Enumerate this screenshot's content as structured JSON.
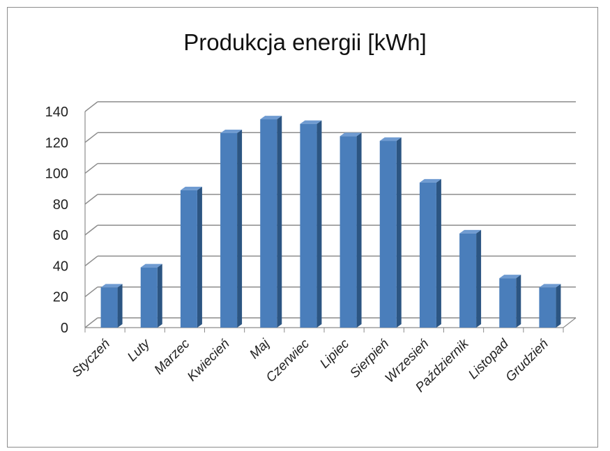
{
  "chart_data": {
    "type": "bar",
    "title": "Produkcja energii [kWh]",
    "xlabel": "",
    "ylabel": "",
    "categories": [
      "Styczeń",
      "Luty",
      "Marzec",
      "Kwiecień",
      "Maj",
      "Czerwiec",
      "Lipiec",
      "Sierpień",
      "Wrzesień",
      "Październik",
      "Listopad",
      "Grudzień"
    ],
    "values": [
      26,
      39,
      89,
      126,
      135,
      132,
      124,
      121,
      94,
      61,
      32,
      26
    ],
    "ylim": [
      0,
      140
    ],
    "yticks": [
      "0",
      "20",
      "40",
      "60",
      "80",
      "100",
      "120",
      "140"
    ],
    "grid": true,
    "style": "3d-column",
    "colors": {
      "bar_front": "#4a7ebb",
      "bar_side": "#2c5582",
      "bar_top": "#6f9bd1",
      "grid": "#8c8c8c"
    }
  }
}
